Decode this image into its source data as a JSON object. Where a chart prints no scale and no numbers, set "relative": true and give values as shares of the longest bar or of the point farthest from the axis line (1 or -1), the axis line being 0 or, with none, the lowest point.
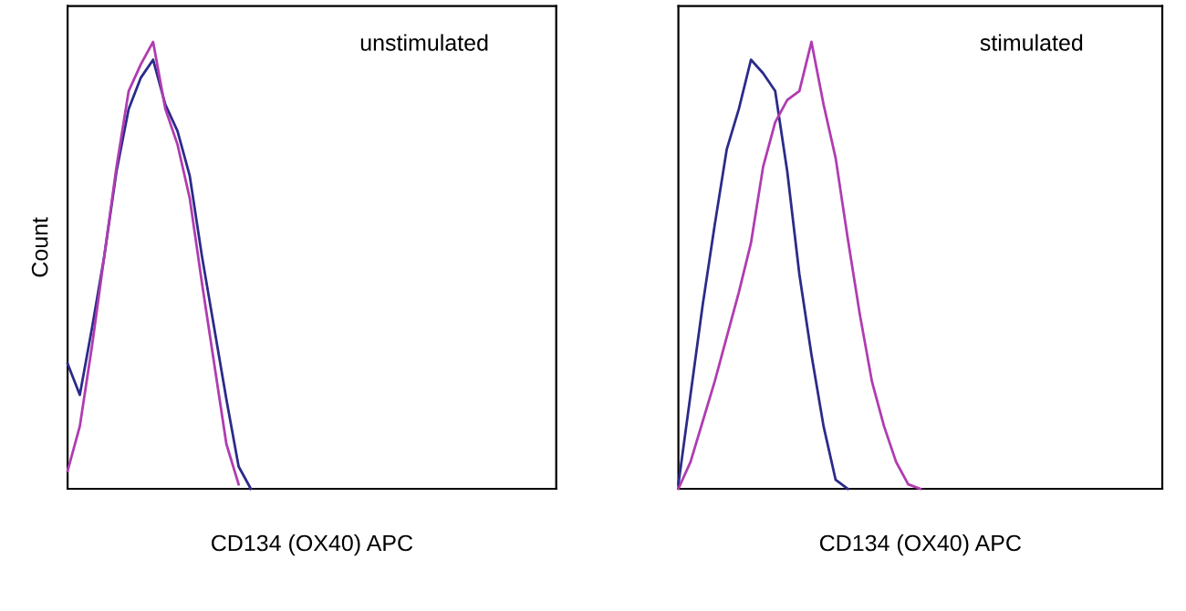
{
  "chart_data": [
    {
      "type": "line",
      "title": "unstimulated",
      "xlabel": "CD134 (OX40) APC",
      "ylabel": "Count",
      "relative": true,
      "legend": false,
      "categories": [
        null,
        null,
        null,
        null,
        null,
        null,
        null,
        null,
        null,
        null,
        null,
        null,
        null,
        null,
        null,
        null,
        null,
        null,
        null,
        null,
        null,
        null,
        null,
        null,
        null,
        null,
        null,
        null,
        null,
        null,
        null,
        null,
        null,
        null,
        null,
        null,
        null,
        null,
        null,
        null,
        null
      ],
      "series": [
        {
          "color": "#2b2b8a",
          "values": [
            0.28,
            0.21,
            0.36,
            0.52,
            0.71,
            0.85,
            0.92,
            0.96,
            0.86,
            0.8,
            0.7,
            0.52,
            0.36,
            0.2,
            0.05,
            0,
            null,
            null,
            null,
            null,
            null,
            null,
            null,
            null,
            null,
            null,
            null,
            null,
            null,
            null,
            null,
            null,
            null,
            null,
            null,
            null,
            null,
            null,
            null,
            null,
            null
          ]
        },
        {
          "color": "#b03cb0",
          "values": [
            0.04,
            0.14,
            0.32,
            0.52,
            0.72,
            0.89,
            0.95,
            1,
            0.85,
            0.77,
            0.65,
            0.46,
            0.28,
            0.1,
            0.01,
            null,
            null,
            null,
            null,
            null,
            null,
            null,
            null,
            null,
            null,
            null,
            null,
            null,
            null,
            null,
            null,
            null,
            null,
            null,
            null,
            null,
            null,
            null,
            null,
            null,
            null
          ]
        }
      ]
    },
    {
      "type": "line",
      "title": "stimulated",
      "xlabel": "CD134 (OX40) APC",
      "relative": true,
      "legend": false,
      "categories": [
        null,
        null,
        null,
        null,
        null,
        null,
        null,
        null,
        null,
        null,
        null,
        null,
        null,
        null,
        null,
        null,
        null,
        null,
        null,
        null,
        null,
        null,
        null,
        null,
        null,
        null,
        null,
        null,
        null,
        null,
        null,
        null,
        null,
        null,
        null,
        null,
        null,
        null,
        null,
        null,
        null
      ],
      "series": [
        {
          "color": "#2b2b8a",
          "values": [
            0.01,
            0.21,
            0.41,
            0.59,
            0.76,
            0.85,
            0.96,
            0.93,
            0.89,
            0.71,
            0.48,
            0.3,
            0.14,
            0.02,
            0,
            null,
            null,
            null,
            null,
            null,
            null,
            null,
            null,
            null,
            null,
            null,
            null,
            null,
            null,
            null,
            null,
            null,
            null,
            null,
            null,
            null,
            null,
            null,
            null,
            null,
            null
          ]
        },
        {
          "color": "#b03cb0",
          "values": [
            0,
            0.06,
            0.15,
            0.24,
            0.34,
            0.44,
            0.55,
            0.72,
            0.82,
            0.87,
            0.89,
            1,
            0.86,
            0.74,
            0.56,
            0.39,
            0.24,
            0.14,
            0.06,
            0.01,
            0,
            null,
            null,
            null,
            null,
            null,
            null,
            null,
            null,
            null,
            null,
            null,
            null,
            null,
            null,
            null,
            null,
            null,
            null,
            null,
            null
          ]
        }
      ]
    }
  ]
}
